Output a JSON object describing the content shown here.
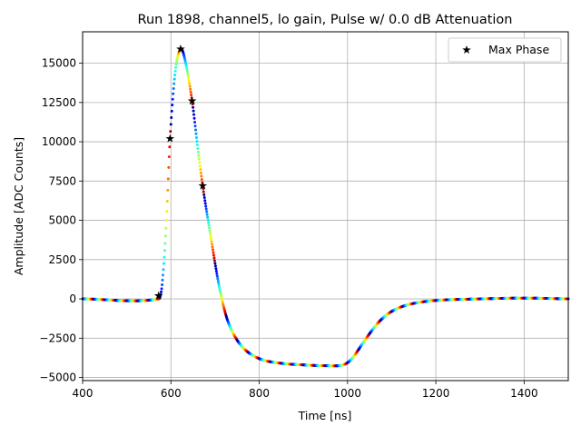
{
  "chart_data": {
    "type": "scatter",
    "title": "Run 1898, channel5, lo gain, Pulse w/ 0.0 dB Attenuation",
    "xlabel": "Time [ns]",
    "ylabel": "Amplitude [ADC Counts]",
    "xlim": [
      400,
      1500
    ],
    "ylim": [
      -5200,
      17000
    ],
    "xticks": [
      400,
      600,
      800,
      1000,
      1200,
      1400
    ],
    "yticks": [
      -5000,
      -2500,
      0,
      2500,
      5000,
      7500,
      10000,
      12500,
      15000
    ],
    "grid": true,
    "legend_position": "top-right",
    "colormap": "jet",
    "marker_color": "#000000",
    "waveform_key_points": [
      {
        "x": 400,
        "y": 0
      },
      {
        "x": 572,
        "y": 0
      },
      {
        "x": 580,
        "y": 900
      },
      {
        "x": 590,
        "y": 5000
      },
      {
        "x": 598,
        "y": 10200
      },
      {
        "x": 610,
        "y": 14500
      },
      {
        "x": 622,
        "y": 15900
      },
      {
        "x": 632,
        "y": 15200
      },
      {
        "x": 648,
        "y": 12600
      },
      {
        "x": 660,
        "y": 9800
      },
      {
        "x": 672,
        "y": 7200
      },
      {
        "x": 690,
        "y": 4000
      },
      {
        "x": 710,
        "y": 700
      },
      {
        "x": 730,
        "y": -1500
      },
      {
        "x": 760,
        "y": -3000
      },
      {
        "x": 800,
        "y": -3800
      },
      {
        "x": 850,
        "y": -4100
      },
      {
        "x": 900,
        "y": -4200
      },
      {
        "x": 950,
        "y": -4250
      },
      {
        "x": 990,
        "y": -4200
      },
      {
        "x": 1010,
        "y": -3800
      },
      {
        "x": 1040,
        "y": -2600
      },
      {
        "x": 1070,
        "y": -1500
      },
      {
        "x": 1100,
        "y": -800
      },
      {
        "x": 1140,
        "y": -350
      },
      {
        "x": 1200,
        "y": -100
      },
      {
        "x": 1300,
        "y": 0
      },
      {
        "x": 1400,
        "y": 50
      },
      {
        "x": 1500,
        "y": 0
      }
    ],
    "series": [
      {
        "name": "Max Phase",
        "marker": "star",
        "points": [
          {
            "x": 572,
            "y": 200
          },
          {
            "x": 598,
            "y": 10200
          },
          {
            "x": 622,
            "y": 15900
          },
          {
            "x": 648,
            "y": 12600
          },
          {
            "x": 672,
            "y": 7200
          }
        ]
      }
    ]
  }
}
